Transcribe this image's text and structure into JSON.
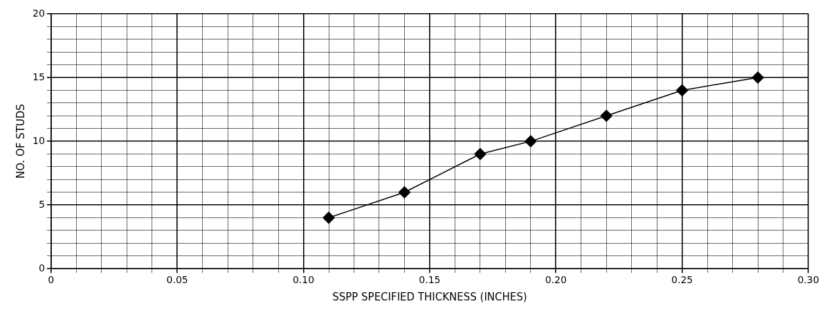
{
  "chart_data": {
    "type": "line",
    "xlabel": "SSPP SPECIFIED THICKNESS (INCHES)",
    "ylabel": "NO. OF STUDS",
    "x": [
      0.11,
      0.14,
      0.17,
      0.19,
      0.22,
      0.25,
      0.28
    ],
    "series": [
      {
        "color": "#000000",
        "values": [
          4,
          6,
          9,
          10,
          12,
          14,
          15
        ]
      }
    ],
    "xlim": [
      0,
      0.3
    ],
    "xticks": [
      0,
      {
        "value": 0.01,
        "label": null
      },
      {
        "value": 0.02,
        "label": null
      },
      {
        "value": 0.03,
        "label": null
      },
      {
        "value": 0.04,
        "label": null
      },
      0.05,
      {
        "value": 0.06,
        "label": null
      },
      {
        "value": 0.07,
        "label": null
      },
      {
        "value": 0.08,
        "label": null
      },
      {
        "value": 0.09,
        "label": null
      },
      {
        "value": 0.1,
        "label": "0.10"
      },
      {
        "value": 0.11,
        "label": null
      },
      {
        "value": 0.12,
        "label": null
      },
      {
        "value": 0.13,
        "label": null
      },
      {
        "value": 0.14,
        "label": null
      },
      0.15,
      {
        "value": 0.16,
        "label": null
      },
      {
        "value": 0.17,
        "label": null
      },
      {
        "value": 0.18,
        "label": null
      },
      {
        "value": 0.19,
        "label": null
      },
      {
        "value": 0.2,
        "label": "0.20"
      },
      {
        "value": 0.21,
        "label": null
      },
      {
        "value": 0.22,
        "label": null
      },
      {
        "value": 0.23,
        "label": null
      },
      {
        "value": 0.24,
        "label": null
      },
      0.25,
      {
        "value": 0.26,
        "label": null
      },
      {
        "value": 0.27,
        "label": null
      },
      {
        "value": 0.28,
        "label": null
      },
      {
        "value": 0.29,
        "label": null
      },
      {
        "value": 0.3,
        "label": "0.30"
      }
    ],
    "ylim": [
      0,
      20
    ],
    "yticks": [
      0,
      {
        "value": 1,
        "label": null
      },
      {
        "value": 2,
        "label": null
      },
      {
        "value": 3,
        "label": null
      },
      {
        "value": 4,
        "label": null
      },
      5,
      {
        "value": 6,
        "label": null
      },
      {
        "value": 7,
        "label": null
      },
      {
        "value": 8,
        "label": null
      },
      {
        "value": 9,
        "label": null
      },
      10,
      {
        "value": 11,
        "label": null
      },
      {
        "value": 12,
        "label": null
      },
      {
        "value": 13,
        "label": null
      },
      {
        "value": 14,
        "label": null
      },
      15,
      {
        "value": 16,
        "label": null
      },
      {
        "value": 17,
        "label": null
      },
      {
        "value": 18,
        "label": null
      },
      {
        "value": 19,
        "label": null
      },
      20
    ],
    "grid": true,
    "marker": "diamond",
    "line_style": "solid",
    "legend": false
  }
}
